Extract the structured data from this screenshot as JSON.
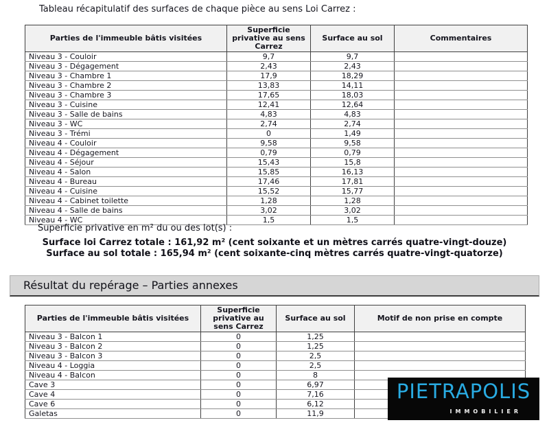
{
  "doc": {
    "title": "Tableau récapitulatif des surfaces de chaque pièce au sens Loi Carrez :"
  },
  "table1": {
    "headers": [
      "Parties de l'immeuble bâtis visitées",
      "Superficie privative au sens Carrez",
      "Surface au sol",
      "Commentaires"
    ],
    "rows": [
      [
        "Niveau 3 - Couloir",
        "9,7",
        "9,7",
        ""
      ],
      [
        "Niveau 3 - Dégagement",
        "2,43",
        "2,43",
        ""
      ],
      [
        "Niveau 3 - Chambre 1",
        "17,9",
        "18,29",
        ""
      ],
      [
        "Niveau 3 - Chambre 2",
        "13,83",
        "14,11",
        ""
      ],
      [
        "Niveau 3 - Chambre 3",
        "17,65",
        "18,03",
        ""
      ],
      [
        "Niveau 3 - Cuisine",
        "12,41",
        "12,64",
        ""
      ],
      [
        "Niveau 3 - Salle de bains",
        "4,83",
        "4,83",
        ""
      ],
      [
        "Niveau 3 - WC",
        "2,74",
        "2,74",
        ""
      ],
      [
        "Niveau 3 - Trémi",
        "0",
        "1,49",
        ""
      ],
      [
        "Niveau 4 - Couloir",
        "9,58",
        "9,58",
        ""
      ],
      [
        "Niveau 4 - Dégagement",
        "0,79",
        "0,79",
        ""
      ],
      [
        "Niveau 4 - Séjour",
        "15,43",
        "15,8",
        ""
      ],
      [
        "Niveau 4 - Salon",
        "15,85",
        "16,13",
        ""
      ],
      [
        "Niveau 4 - Bureau",
        "17,46",
        "17,81",
        ""
      ],
      [
        "Niveau 4 - Cuisine",
        "15,52",
        "15,77",
        ""
      ],
      [
        "Niveau 4 - Cabinet toilette",
        "1,28",
        "1,28",
        ""
      ],
      [
        "Niveau 4 - Salle de bains",
        "3,02",
        "3,02",
        ""
      ],
      [
        "Niveau 4 - WC",
        "1,5",
        "1,5",
        ""
      ]
    ]
  },
  "summary": {
    "intro": "Superficie privative en m² du ou des lot(s) :",
    "carrez_total": "Surface loi Carrez totale : 161,92 m² (cent soixante et un mètres carrés quatre-vingt-douze)",
    "sol_total": "Surface au sol totale : 165,94 m² (cent soixante-cinq mètres carrés quatre-vingt-quatorze)"
  },
  "banner": {
    "title": "Résultat du repérage – Parties annexes"
  },
  "table2": {
    "headers": [
      "Parties de l'immeuble bâtis visitées",
      "Superficie privative au sens Carrez",
      "Surface au sol",
      "Motif de non prise en compte"
    ],
    "rows": [
      [
        "Niveau 3 - Balcon 1",
        "0",
        "1,25",
        ""
      ],
      [
        "Niveau 3 - Balcon 2",
        "0",
        "1,25",
        ""
      ],
      [
        "Niveau 3 - Balcon 3",
        "0",
        "2,5",
        ""
      ],
      [
        "Niveau 4 - Loggia",
        "0",
        "2,5",
        ""
      ],
      [
        "Niveau 4 - Balcon",
        "0",
        "8",
        ""
      ],
      [
        "Cave 3",
        "0",
        "6,97",
        ""
      ],
      [
        "Cave 4",
        "0",
        "7,16",
        ""
      ],
      [
        "Cave 6",
        "0",
        "6,12",
        ""
      ],
      [
        "Galetas",
        "0",
        "11,9",
        ""
      ]
    ]
  },
  "logo": {
    "brand": "PIETRAPOLIS",
    "tagline": "IMMOBILIER",
    "accent_color": "#29abe2",
    "background_color": "#070707"
  }
}
